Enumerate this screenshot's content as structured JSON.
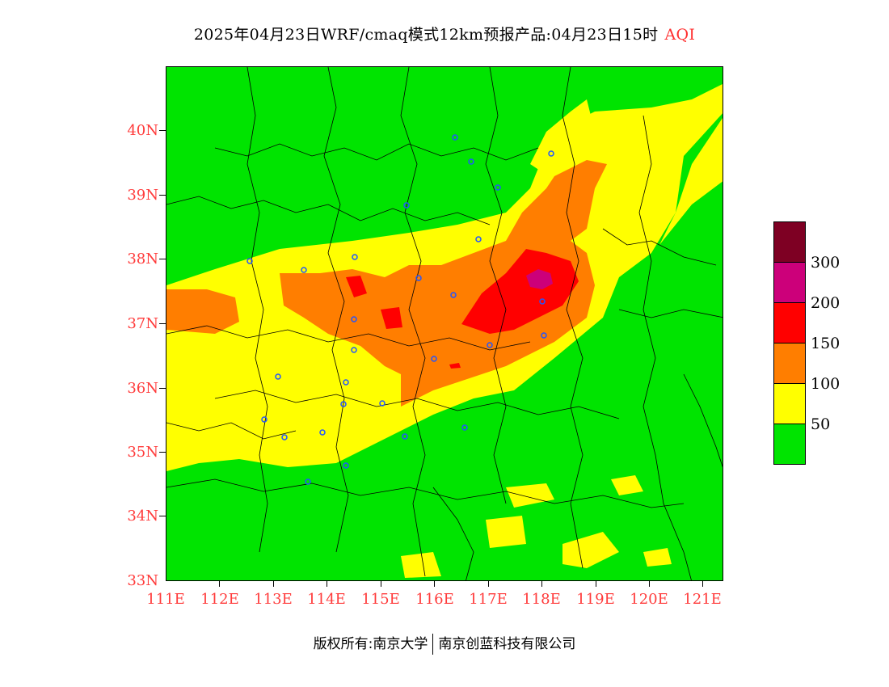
{
  "title": {
    "main": "2025年04月23日WRF/cmaq模式12km预报产品:04月23日15时",
    "variable": "AQI"
  },
  "axes": {
    "lat_labels": [
      "40N",
      "39N",
      "38N",
      "37N",
      "36N",
      "35N",
      "34N",
      "33N"
    ],
    "lon_labels": [
      "111E",
      "112E",
      "113E",
      "114E",
      "115E",
      "116E",
      "117E",
      "118E",
      "119E",
      "120E",
      "121E"
    ],
    "lat_range": [
      33,
      41
    ],
    "lon_range": [
      111,
      121.4
    ]
  },
  "legend": {
    "labels": [
      "300",
      "200",
      "150",
      "100",
      "50"
    ],
    "colors": [
      "#7e0023",
      "#cc007a",
      "#ff0000",
      "#ff7e00",
      "#ffff00",
      "#00e400"
    ]
  },
  "map_colors": {
    "good": "#00e400",
    "moderate": "#ffff00",
    "usg": "#ff7e00",
    "unhealthy": "#ff0000",
    "very_unhealthy": "#cc007a",
    "city_marker": "#2255ff"
  },
  "footer": {
    "left": "版权所有:南京大学",
    "right": "南京创蓝科技有限公司"
  }
}
